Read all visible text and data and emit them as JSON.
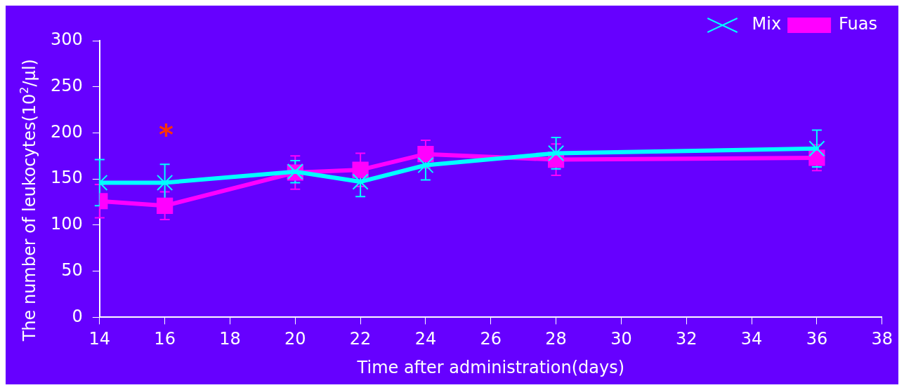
{
  "chart_data": {
    "type": "line",
    "xlabel": "Time after administration(days)",
    "ylabel": "The number of leukocytes(10$^{2}$/μl)",
    "x": [
      14,
      16,
      20,
      22,
      24,
      28,
      36
    ],
    "series": [
      {
        "name": "Fuas",
        "color": "#ff00ff",
        "marker": "square",
        "values": [
          126,
          121,
          157,
          160,
          177,
          171,
          173
        ],
        "errors": [
          18,
          15,
          18,
          18,
          15,
          17,
          14
        ]
      },
      {
        "name": "Mix",
        "color": "#00ffff",
        "marker": "cross",
        "values": [
          146,
          146,
          158,
          147,
          165,
          178,
          183
        ],
        "errors": [
          25,
          20,
          12,
          16,
          16,
          17,
          20
        ]
      }
    ],
    "xlim": [
      14,
      38
    ],
    "xticks": [
      14,
      16,
      18,
      20,
      22,
      24,
      26,
      28,
      30,
      32,
      34,
      36,
      38
    ],
    "ylim": [
      0,
      300
    ],
    "yticks": [
      0,
      50,
      100,
      150,
      200,
      250,
      300
    ],
    "annotations": [
      "*"
    ],
    "grid": false,
    "legend": "top right",
    "line_style": "solid"
  }
}
